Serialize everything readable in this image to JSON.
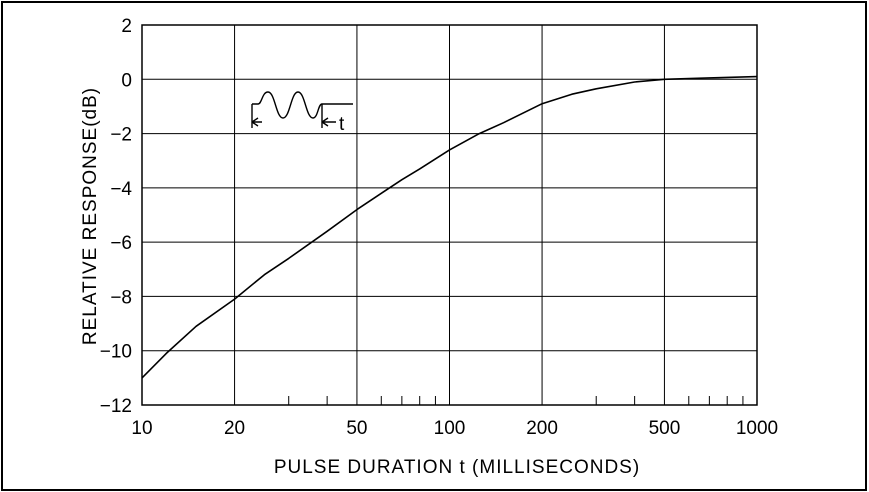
{
  "chart_data": {
    "type": "line",
    "title": "",
    "xlabel": "PULSE DURATION t (MILLISECONDS)",
    "ylabel": "RELATIVE RESPONSE(dB)",
    "x_scale": "log",
    "xlim": [
      10,
      1000
    ],
    "ylim": [
      -12,
      2
    ],
    "x_ticks": [
      10,
      20,
      50,
      100,
      200,
      500,
      1000
    ],
    "x_tick_labels": [
      "10",
      "20",
      "50",
      "100",
      "200",
      "500",
      "1000"
    ],
    "y_ticks": [
      2,
      0,
      -2,
      -4,
      -6,
      -8,
      -10,
      -12
    ],
    "y_tick_labels": [
      "2",
      "0",
      "−2",
      "−4",
      "−6",
      "−8",
      "−10",
      "−12"
    ],
    "grid": true,
    "series": [
      {
        "x": [
          10,
          12,
          15,
          20,
          25,
          30,
          40,
          50,
          60,
          70,
          80,
          100,
          125,
          150,
          200,
          250,
          300,
          400,
          500,
          700,
          1000
        ],
        "y": [
          -11.0,
          -10.1,
          -9.1,
          -8.1,
          -7.2,
          -6.6,
          -5.6,
          -4.8,
          -4.2,
          -3.7,
          -3.3,
          -2.6,
          -2.0,
          -1.6,
          -0.9,
          -0.55,
          -0.35,
          -0.1,
          0.0,
          0.05,
          0.1
        ]
      }
    ],
    "inset_label": "t",
    "colors": {
      "line": "#000000",
      "grid": "#000000"
    }
  }
}
